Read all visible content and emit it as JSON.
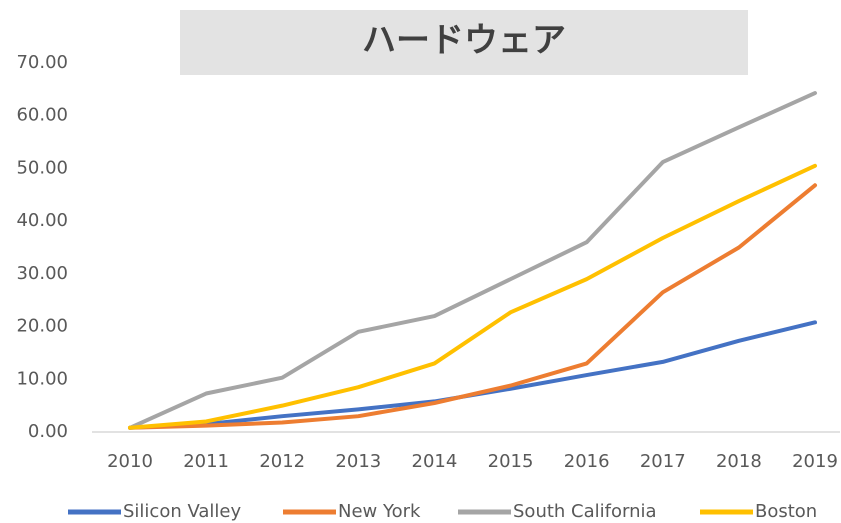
{
  "chart_data": {
    "type": "line",
    "title": "ハードウェア",
    "categories": [
      "2010",
      "2011",
      "2012",
      "2013",
      "2014",
      "2015",
      "2016",
      "2017",
      "2018",
      "2019"
    ],
    "series": [
      {
        "name": "Silicon Valley",
        "color": "#4472c4",
        "values": [
          0.8,
          1.5,
          3.0,
          4.3,
          5.8,
          8.2,
          10.8,
          13.3,
          17.3,
          20.8
        ]
      },
      {
        "name": "New York",
        "color": "#ed7d31",
        "values": [
          0.8,
          1.2,
          1.8,
          3.0,
          5.5,
          8.8,
          13.0,
          26.5,
          35.0,
          46.8
        ]
      },
      {
        "name": "South California",
        "color": "#a5a5a5",
        "values": [
          0.8,
          7.3,
          10.3,
          19.0,
          22.0,
          29.0,
          36.0,
          51.2,
          57.8,
          64.3
        ]
      },
      {
        "name": "Boston",
        "color": "#ffc000",
        "values": [
          0.8,
          2.0,
          5.0,
          8.5,
          13.0,
          22.7,
          29.0,
          36.8,
          43.8,
          50.5
        ]
      }
    ],
    "ylim": [
      0,
      70
    ],
    "yticks": [
      {
        "value": 0,
        "label": "0.00"
      },
      {
        "value": 10,
        "label": "10.00"
      },
      {
        "value": 20,
        "label": "20.00"
      },
      {
        "value": 30,
        "label": "30.00"
      },
      {
        "value": 40,
        "label": "40.00"
      },
      {
        "value": 50,
        "label": "50.00"
      },
      {
        "value": 60,
        "label": "60.00"
      },
      {
        "value": 70,
        "label": "70.00"
      }
    ],
    "grid": false,
    "legend": "bottom"
  }
}
